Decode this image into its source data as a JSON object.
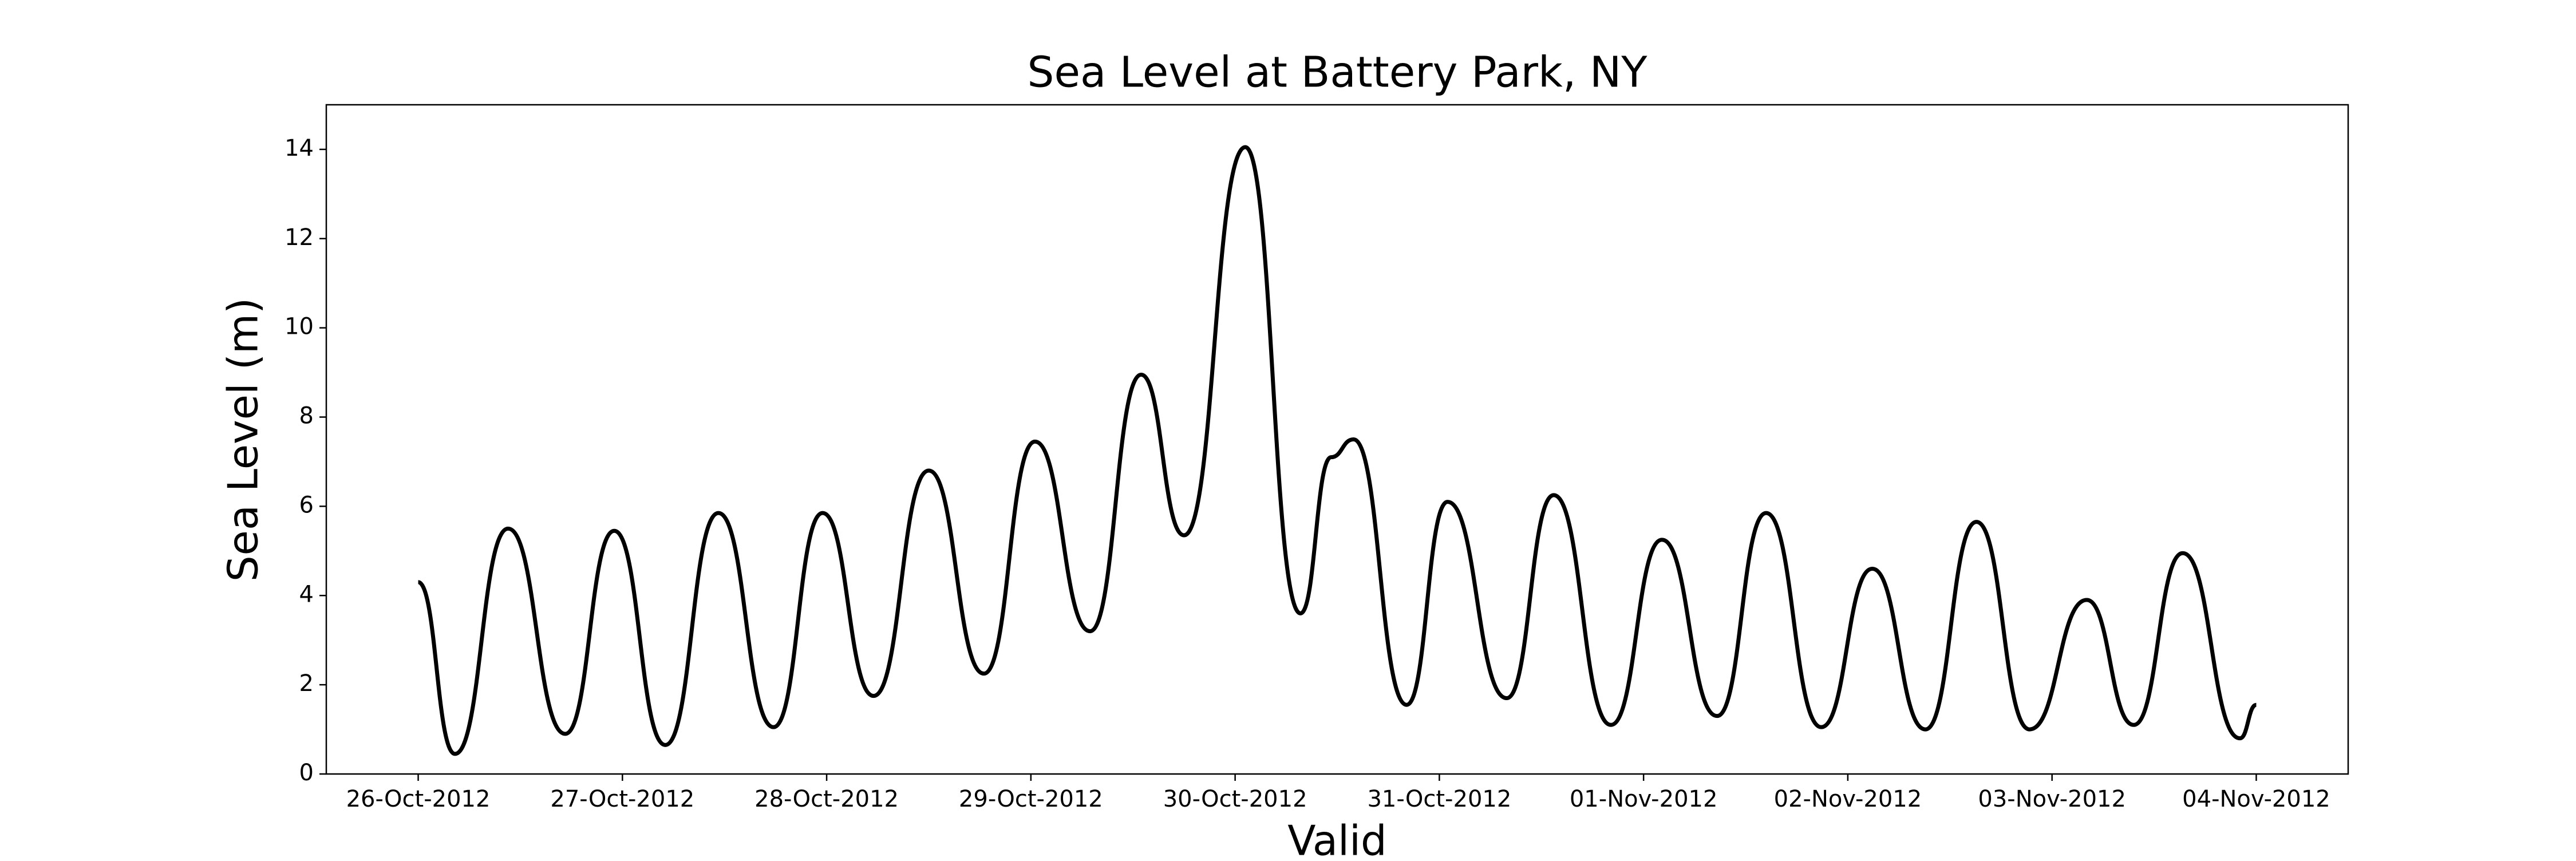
{
  "chart_data": {
    "type": "line",
    "title": "Sea Level at Battery Park, NY",
    "x_label": "Valid",
    "y_label": "Sea Level (m)",
    "x": [
      0,
      0.18,
      0.44,
      0.72,
      0.96,
      1.21,
      1.47,
      1.74,
      1.98,
      2.23,
      2.5,
      2.77,
      3.02,
      3.29,
      3.54,
      3.75,
      4.05,
      4.32,
      4.47,
      4.58,
      4.84,
      5.04,
      5.33,
      5.56,
      5.84,
      6.09,
      6.36,
      6.6,
      6.87,
      7.12,
      7.38,
      7.63,
      7.89,
      8.17,
      8.4,
      8.64,
      8.92,
      9.0
    ],
    "series": [
      {
        "name": "Sea Level",
        "color": "#000000",
        "values": [
          4.3,
          0.45,
          5.5,
          0.9,
          5.45,
          0.65,
          5.85,
          1.05,
          5.85,
          1.75,
          6.8,
          2.25,
          7.45,
          3.2,
          8.95,
          5.35,
          14.05,
          3.6,
          7.1,
          7.5,
          1.55,
          6.1,
          1.7,
          6.25,
          1.1,
          5.25,
          1.3,
          5.85,
          1.05,
          4.6,
          1.0,
          5.65,
          1.0,
          3.9,
          1.1,
          4.95,
          0.8,
          1.55
        ]
      }
    ],
    "xlim": [
      -0.45,
      9.45
    ],
    "ylim": [
      0,
      15
    ],
    "xticks": [
      {
        "value": 0,
        "label": "26-Oct-2012"
      },
      {
        "value": 1,
        "label": "27-Oct-2012"
      },
      {
        "value": 2,
        "label": "28-Oct-2012"
      },
      {
        "value": 3,
        "label": "29-Oct-2012"
      },
      {
        "value": 4,
        "label": "30-Oct-2012"
      },
      {
        "value": 5,
        "label": "31-Oct-2012"
      },
      {
        "value": 6,
        "label": "01-Nov-2012"
      },
      {
        "value": 7,
        "label": "02-Nov-2012"
      },
      {
        "value": 8,
        "label": "03-Nov-2012"
      },
      {
        "value": 9,
        "label": "04-Nov-2012"
      }
    ],
    "yticks": [
      0,
      2,
      4,
      6,
      8,
      10,
      12,
      14
    ],
    "grid": false
  }
}
